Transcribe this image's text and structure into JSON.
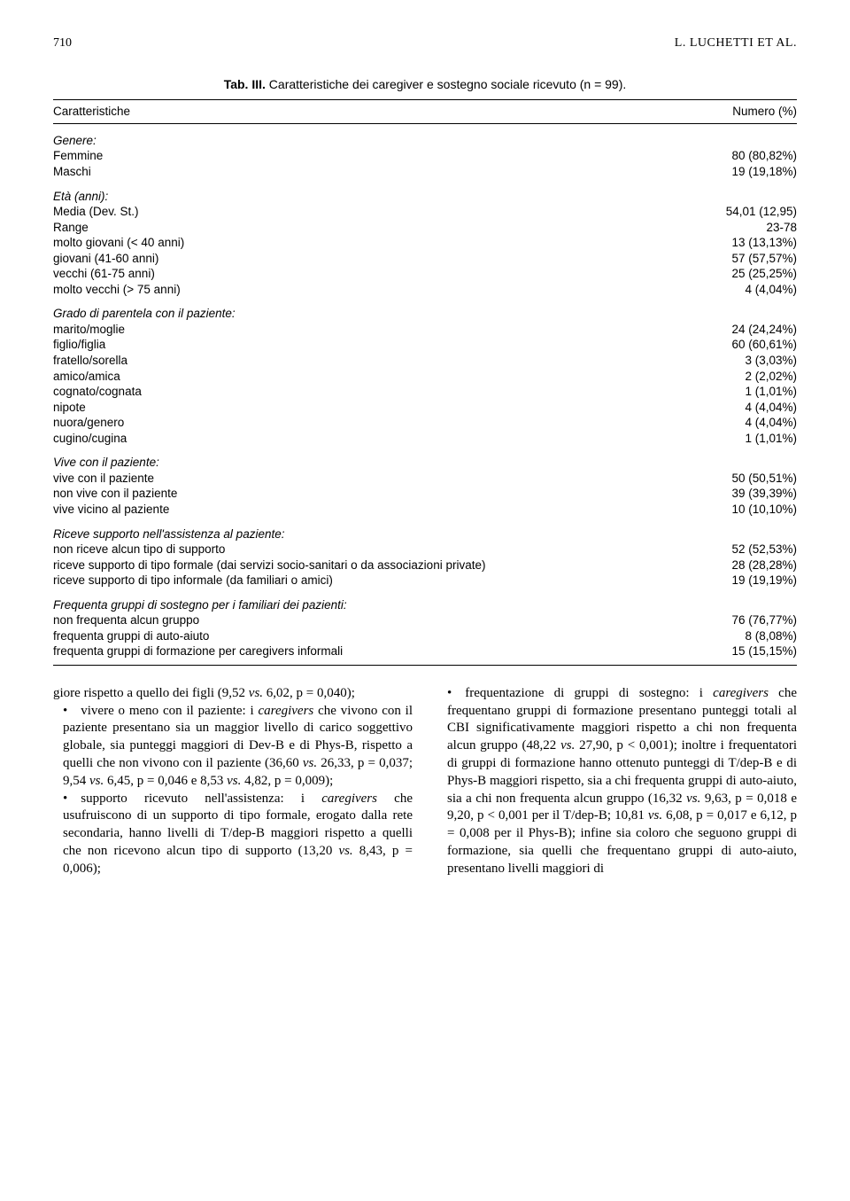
{
  "page": {
    "number": "710",
    "running_head": "L. LUCHETTI ET AL."
  },
  "table": {
    "title_prefix": "Tab. III.",
    "title_rest": " Caratteristiche dei caregiver e sostegno sociale ricevuto (n = 99).",
    "col_left": "Caratteristiche",
    "col_right": "Numero (%)",
    "groups": [
      {
        "head": "Genere:",
        "rows": [
          {
            "label": "Femmine",
            "val": "80 (80,82%)"
          },
          {
            "label": "Maschi",
            "val": "19 (19,18%)"
          }
        ]
      },
      {
        "head": "Età (anni):",
        "rows": [
          {
            "label": "Media (Dev. St.)",
            "val": "54,01 (12,95)"
          },
          {
            "label": "Range",
            "val": "23-78"
          },
          {
            "label": "molto giovani (< 40 anni)",
            "val": "13 (13,13%)"
          },
          {
            "label": "giovani (41-60 anni)",
            "val": "57 (57,57%)"
          },
          {
            "label": "vecchi (61-75 anni)",
            "val": "25 (25,25%)"
          },
          {
            "label": "molto vecchi (> 75 anni)",
            "val": "4 (4,04%)"
          }
        ]
      },
      {
        "head": "Grado di parentela con il paziente:",
        "rows": [
          {
            "label": "marito/moglie",
            "val": "24 (24,24%)"
          },
          {
            "label": "figlio/figlia",
            "val": "60 (60,61%)"
          },
          {
            "label": "fratello/sorella",
            "val": "3 (3,03%)"
          },
          {
            "label": "amico/amica",
            "val": "2 (2,02%)"
          },
          {
            "label": "cognato/cognata",
            "val": "1 (1,01%)"
          },
          {
            "label": "nipote",
            "val": "4 (4,04%)"
          },
          {
            "label": "nuora/genero",
            "val": "4 (4,04%)"
          },
          {
            "label": "cugino/cugina",
            "val": "1 (1,01%)"
          }
        ]
      },
      {
        "head": "Vive con il paziente:",
        "rows": [
          {
            "label": "vive con il paziente",
            "val": "50 (50,51%)"
          },
          {
            "label": "non vive con il paziente",
            "val": "39 (39,39%)"
          },
          {
            "label": "vive vicino al paziente",
            "val": "10 (10,10%)"
          }
        ]
      },
      {
        "head": "Riceve supporto nell'assistenza al paziente:",
        "rows": [
          {
            "label": "non riceve alcun tipo di supporto",
            "val": "52 (52,53%)"
          },
          {
            "label": "riceve supporto di tipo formale (dai servizi socio-sanitari o da associazioni private)",
            "val": "28 (28,28%)"
          },
          {
            "label": "riceve supporto di tipo informale (da familiari o amici)",
            "val": "19 (19,19%)"
          }
        ]
      },
      {
        "head": "Frequenta gruppi di sostegno per i familiari dei pazienti:",
        "rows": [
          {
            "label": "non frequenta alcun gruppo",
            "val": "76 (76,77%)"
          },
          {
            "label": "frequenta gruppi di auto-aiuto",
            "val": "8 (8,08%)"
          },
          {
            "label": "frequenta gruppi di formazione per caregivers informali",
            "val": "15 (15,15%)"
          }
        ]
      }
    ]
  },
  "body": {
    "left": {
      "p1a": "giore rispetto a quello dei figli (9,52 ",
      "p1b": "vs.",
      "p1c": " 6,02, p = 0,040);",
      "p2a": "• vivere o meno con il paziente: i ",
      "p2b": "caregivers",
      "p2c": " che vivono con il paziente presentano sia un maggior livello di carico soggettivo globale, sia punteggi maggiori di Dev-B e di Phys-B, rispetto a quelli che non vivono con il paziente (36,60 ",
      "p2d": "vs.",
      "p2e": " 26,33, p = 0,037; 9,54 ",
      "p2f": "vs.",
      "p2g": " 6,45, p = 0,046 e 8,53 ",
      "p2h": "vs.",
      "p2i": " 4,82, p = 0,009);",
      "p3a": "• supporto ricevuto nell'assistenza: i ",
      "p3b": "caregivers",
      "p3c": " che usufruiscono di un supporto di tipo formale, erogato dalla rete secondaria, hanno livelli di T/dep-B maggiori rispetto a quelli che non ricevono alcun tipo di supporto (13,20 ",
      "p3d": "vs.",
      "p3e": " 8,43, p = 0,006);"
    },
    "right": {
      "p1a": "• frequentazione di gruppi di sostegno: i ",
      "p1b": "caregivers",
      "p1c": " che frequentano gruppi di formazione presentano punteggi totali al CBI significativamente maggiori rispetto a chi non frequenta alcun gruppo (48,22 ",
      "p1d": "vs.",
      "p1e": " 27,90, p < 0,001); inoltre i frequentatori di gruppi di formazione hanno ottenuto punteggi di T/dep-B e di Phys-B maggiori rispetto, sia a chi frequenta gruppi di auto-aiuto, sia a chi non frequenta alcun gruppo (16,32 ",
      "p1f": "vs.",
      "p1g": " 9,63, p = 0,018 e 9,20, p < 0,001 per il T/dep-B; 10,81 ",
      "p1h": "vs.",
      "p1i": " 6,08, p = 0,017 e 6,12, p = 0,008 per il Phys-B); infine sia coloro che seguono gruppi di formazione, sia quelli che frequentano gruppi di auto-aiuto, presentano livelli maggiori di"
    }
  }
}
